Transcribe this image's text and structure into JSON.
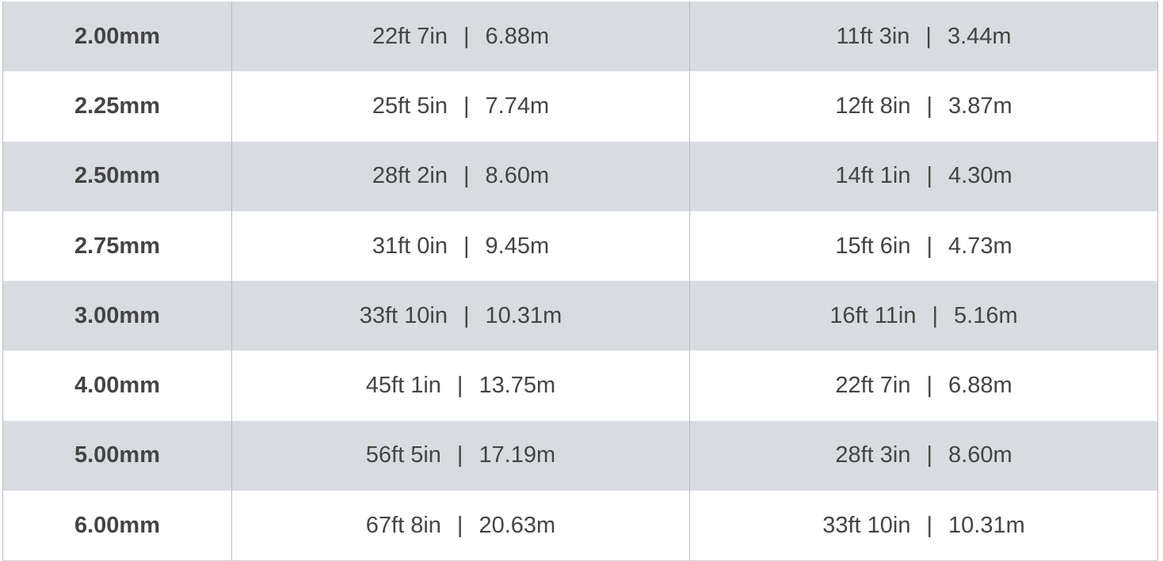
{
  "table": {
    "colors": {
      "shade": "#d8dce0",
      "text": "#444444"
    },
    "rows": [
      {
        "size": "2.00mm",
        "a_ft": "22ft 7in",
        "a_m": "6.88m",
        "b_ft": "11ft 3in",
        "b_m": "3.44m"
      },
      {
        "size": "2.25mm",
        "a_ft": "25ft 5in",
        "a_m": "7.74m",
        "b_ft": "12ft 8in",
        "b_m": "3.87m"
      },
      {
        "size": "2.50mm",
        "a_ft": "28ft 2in",
        "a_m": "8.60m",
        "b_ft": "14ft 1in",
        "b_m": "4.30m"
      },
      {
        "size": "2.75mm",
        "a_ft": "31ft 0in",
        "a_m": "9.45m",
        "b_ft": "15ft 6in",
        "b_m": "4.73m"
      },
      {
        "size": "3.00mm",
        "a_ft": "33ft 10in",
        "a_m": "10.31m",
        "b_ft": "16ft 11in",
        "b_m": "5.16m"
      },
      {
        "size": "4.00mm",
        "a_ft": "45ft 1in",
        "a_m": "13.75m",
        "b_ft": "22ft 7in",
        "b_m": "6.88m"
      },
      {
        "size": "5.00mm",
        "a_ft": "56ft 5in",
        "a_m": "17.19m",
        "b_ft": "28ft 3in",
        "b_m": "8.60m"
      },
      {
        "size": "6.00mm",
        "a_ft": "67ft 8in",
        "a_m": "20.63m",
        "b_ft": "33ft 10in",
        "b_m": "10.31m"
      }
    ],
    "separator": "|"
  }
}
